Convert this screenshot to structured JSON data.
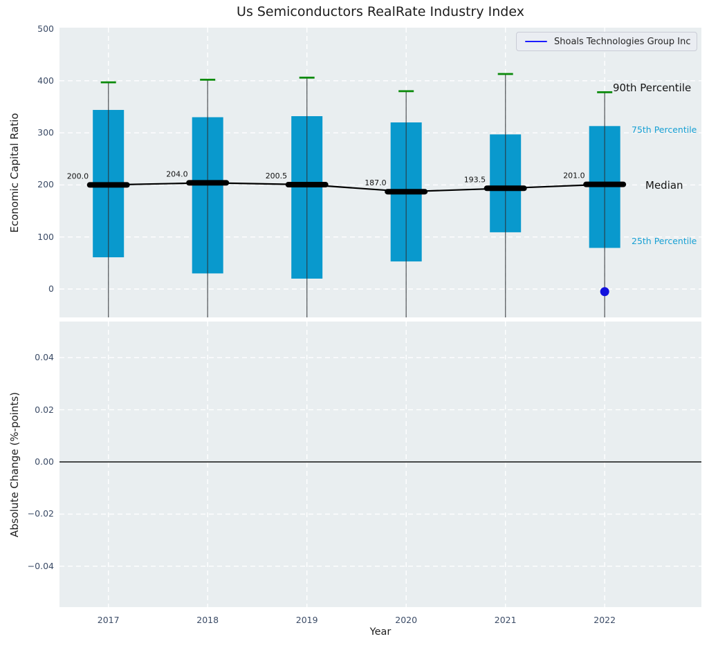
{
  "annotations": {
    "p90": "90th Percentile",
    "p75": "75th Percentile",
    "median": "Median",
    "p25": "25th Percentile"
  },
  "colors": {
    "box": "#0999cd",
    "cap_green": "#0a8a0a",
    "median_black": "#000000",
    "company_blue": "#1111dd",
    "legend_blue": "#1b1bff",
    "cyan_label": "#17a0d4",
    "tick_label": "#3b4b66",
    "panel_bg": "#e9eef0",
    "grid": "#ffffff"
  },
  "chart_data": {
    "type": "box",
    "title": "Us Semiconductors RealRate Industry Index",
    "xlabel": "Year",
    "categories": [
      "2017",
      "2018",
      "2019",
      "2020",
      "2021",
      "2022"
    ],
    "grid": true,
    "legend": {
      "position": "upper right",
      "entries": [
        {
          "label": "Shoals Technologies Group Inc",
          "color": "#1b1bff"
        }
      ]
    },
    "top_panel": {
      "ylabel": "Economic Capital Ratio",
      "ylim": [
        -53,
        500
      ],
      "yticks": [
        0,
        100,
        200,
        300,
        400,
        500
      ],
      "ytick_labels": [
        "0",
        "100",
        "200",
        "300",
        "400",
        "500"
      ],
      "p90": [
        397,
        402,
        406,
        380,
        413,
        378
      ],
      "p75": [
        344,
        330,
        332,
        320,
        297,
        313
      ],
      "median": [
        200.0,
        204.0,
        200.5,
        187.0,
        193.5,
        201.0
      ],
      "median_labels": [
        "200.0",
        "204.0",
        "200.5",
        "187.0",
        "193.5",
        "201.0"
      ],
      "p25": [
        61,
        30,
        20,
        53,
        109,
        79
      ],
      "lower_whisker_clipped_below_axis": true,
      "company_point": {
        "category": "2022",
        "value": -5
      }
    },
    "bottom_panel": {
      "ylabel": "Absolute Change (%-points)",
      "ylim": [
        -0.055,
        0.054
      ],
      "yticks": [
        0.04,
        0.02,
        0,
        -0.02,
        -0.04
      ],
      "ytick_labels": [
        "0.04",
        "0.02",
        "0.00",
        "−0.02",
        "−0.04"
      ],
      "zero_line": 0,
      "series": []
    }
  }
}
